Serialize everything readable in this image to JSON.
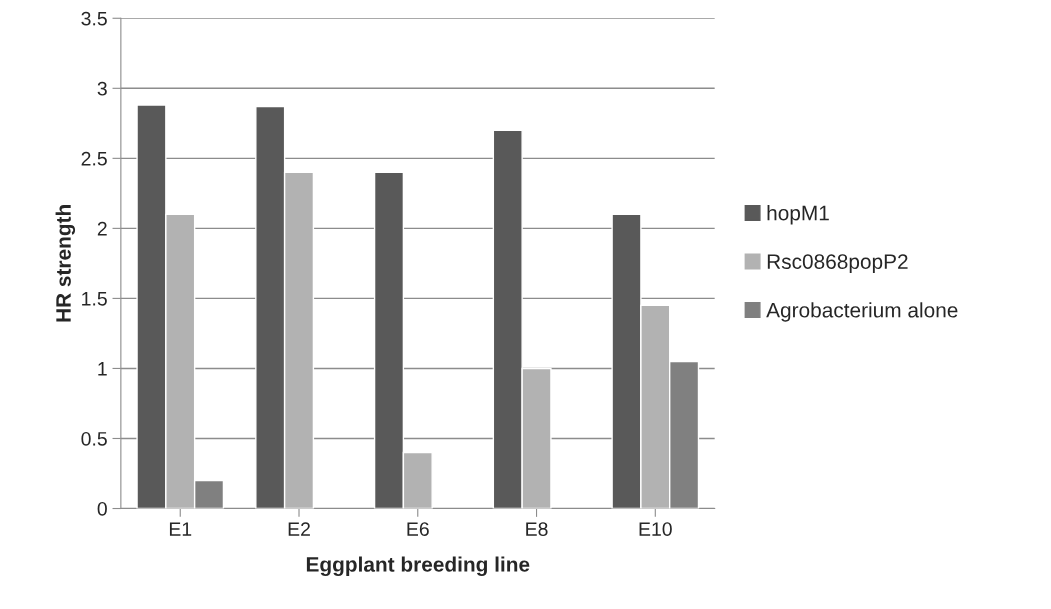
{
  "chart_data": {
    "type": "bar",
    "xlabel": "Eggplant breeding line",
    "ylabel": "HR strength",
    "categories": [
      "E1",
      "E2",
      "E6",
      "E8",
      "E10"
    ],
    "series": [
      {
        "name": "hopM1",
        "color": "#595959",
        "values": [
          2.88,
          2.87,
          2.4,
          2.7,
          2.1
        ]
      },
      {
        "name": "Rsc0868popP2",
        "color": "#b2b2b2",
        "values": [
          2.1,
          2.4,
          0.4,
          1.0,
          1.45
        ]
      },
      {
        "name": "Agrobacterium alone",
        "color": "#808080",
        "values": [
          0.2,
          null,
          null,
          null,
          1.05
        ]
      }
    ],
    "ylim": [
      0,
      3.5
    ],
    "yticks": [
      0,
      0.5,
      1,
      1.5,
      2,
      2.5,
      3,
      3.5
    ],
    "grid": "y",
    "legend": "right"
  }
}
